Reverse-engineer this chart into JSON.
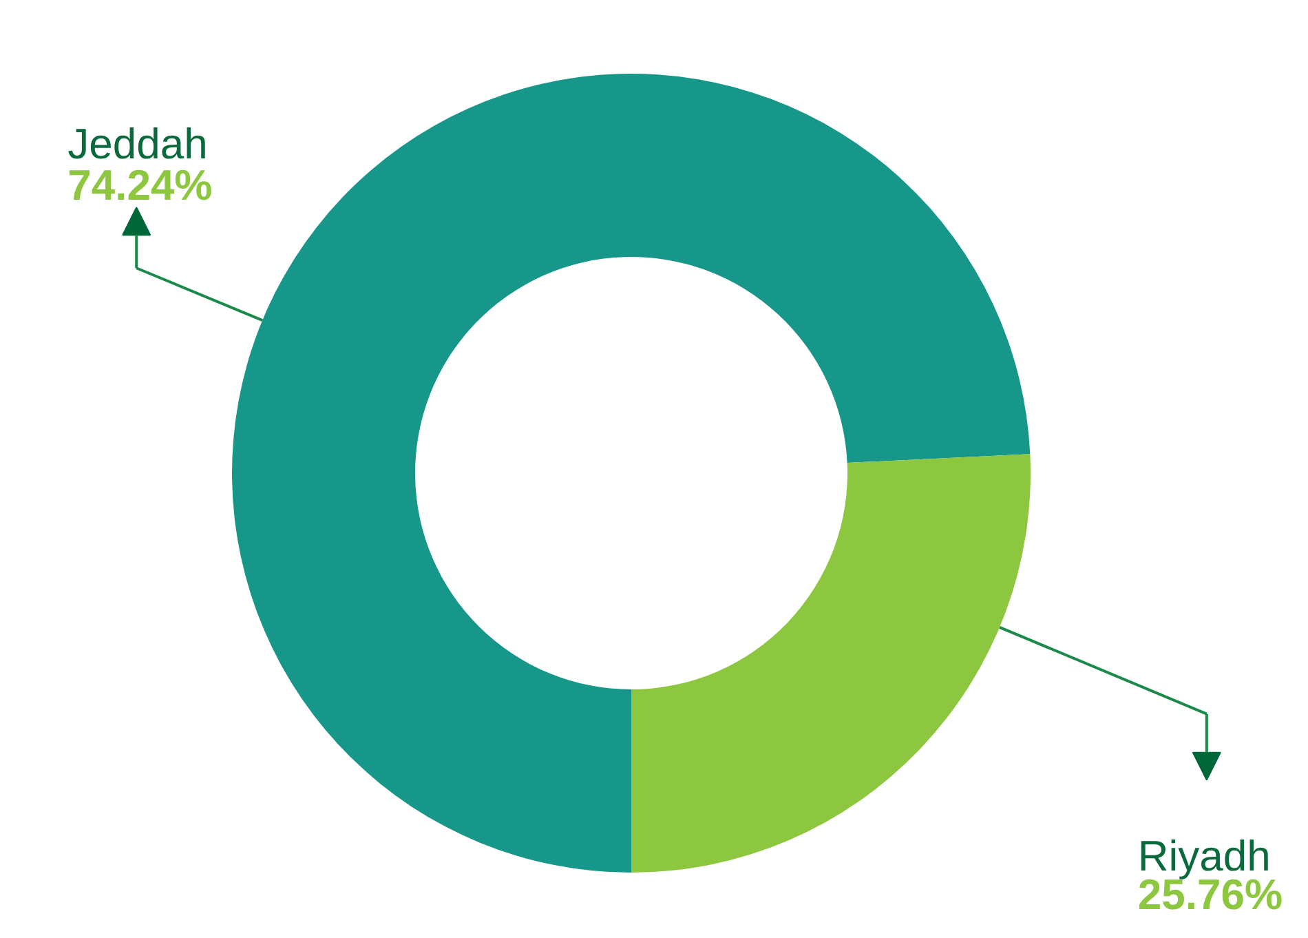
{
  "chart_data": {
    "type": "donut",
    "categories": [
      "Jeddah",
      "Riyadh"
    ],
    "values": [
      74.24,
      25.76
    ],
    "colors": [
      "#17968a",
      "#8dc63f"
    ],
    "value_labels": [
      "74.24%",
      "25.76%"
    ]
  }
}
